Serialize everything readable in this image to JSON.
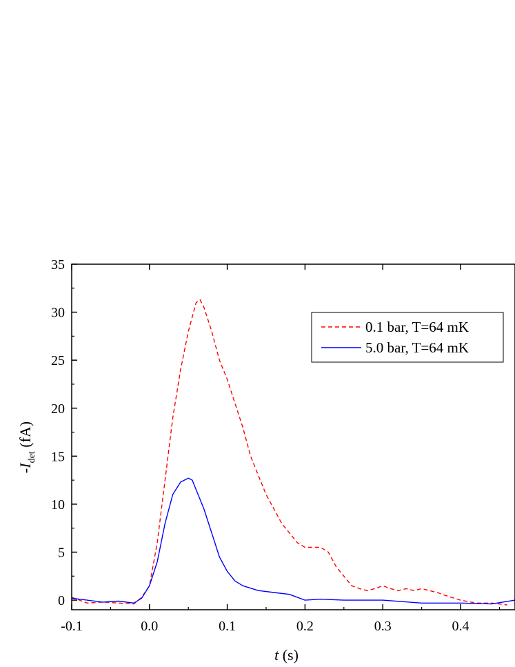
{
  "chart_data": {
    "type": "line",
    "xlabel": {
      "var": "t",
      "unit": " (s)"
    },
    "ylabel": {
      "prefix": "-",
      "var": "I",
      "sub": "det",
      "unit": " (fA)"
    },
    "xlim": [
      -0.1,
      0.47
    ],
    "ylim": [
      -1,
      35
    ],
    "x_ticks": [
      -0.1,
      0.0,
      0.1,
      0.2,
      0.3,
      0.4
    ],
    "x_tick_labels": [
      "-0.1",
      "0.0",
      "0.1",
      "0.2",
      "0.3",
      "0.4"
    ],
    "y_ticks": [
      0,
      5,
      10,
      15,
      20,
      25,
      30,
      35
    ],
    "y_tick_labels": [
      "0",
      "5",
      "10",
      "15",
      "20",
      "25",
      "30",
      "35"
    ],
    "grid": false,
    "legend_position": "top-right",
    "series": [
      {
        "name": "0.1 bar, T=64 mK",
        "color": "#ff0000",
        "style": "dashed",
        "x": [
          -0.1,
          -0.08,
          -0.06,
          -0.04,
          -0.02,
          -0.01,
          0.0,
          0.01,
          0.02,
          0.03,
          0.04,
          0.05,
          0.06,
          0.065,
          0.07,
          0.08,
          0.09,
          0.1,
          0.11,
          0.12,
          0.13,
          0.14,
          0.15,
          0.16,
          0.17,
          0.18,
          0.19,
          0.2,
          0.21,
          0.22,
          0.23,
          0.24,
          0.25,
          0.26,
          0.27,
          0.28,
          0.29,
          0.3,
          0.31,
          0.32,
          0.33,
          0.34,
          0.35,
          0.36,
          0.37,
          0.38,
          0.4,
          0.42,
          0.44,
          0.46
        ],
        "y": [
          0.3,
          -0.3,
          -0.2,
          -0.3,
          -0.4,
          0.3,
          1.5,
          6.0,
          12.5,
          19.0,
          24.0,
          28.0,
          31.0,
          31.3,
          30.5,
          28.0,
          25.0,
          23.0,
          20.5,
          18.0,
          15.0,
          13.0,
          11.0,
          9.5,
          8.0,
          7.0,
          6.0,
          5.5,
          5.5,
          5.5,
          5.0,
          3.5,
          2.5,
          1.5,
          1.2,
          1.0,
          1.2,
          1.5,
          1.2,
          1.0,
          1.2,
          1.0,
          1.2,
          1.0,
          0.8,
          0.5,
          0.0,
          -0.3,
          -0.3,
          -0.5
        ]
      },
      {
        "name": "5.0 bar, T=64 mK",
        "color": "#0000ff",
        "style": "solid",
        "x": [
          -0.1,
          -0.08,
          -0.06,
          -0.04,
          -0.02,
          -0.01,
          0.0,
          0.01,
          0.02,
          0.03,
          0.04,
          0.05,
          0.055,
          0.06,
          0.07,
          0.08,
          0.09,
          0.1,
          0.11,
          0.12,
          0.14,
          0.16,
          0.18,
          0.2,
          0.22,
          0.25,
          0.3,
          0.35,
          0.4,
          0.44,
          0.47
        ],
        "y": [
          0.2,
          0.0,
          -0.2,
          -0.1,
          -0.3,
          0.2,
          1.5,
          4.0,
          8.0,
          11.0,
          12.3,
          12.7,
          12.5,
          11.5,
          9.5,
          7.0,
          4.5,
          3.0,
          2.0,
          1.5,
          1.0,
          0.8,
          0.6,
          0.0,
          0.1,
          0.0,
          0.0,
          -0.3,
          -0.3,
          -0.4,
          0.0
        ]
      }
    ]
  }
}
